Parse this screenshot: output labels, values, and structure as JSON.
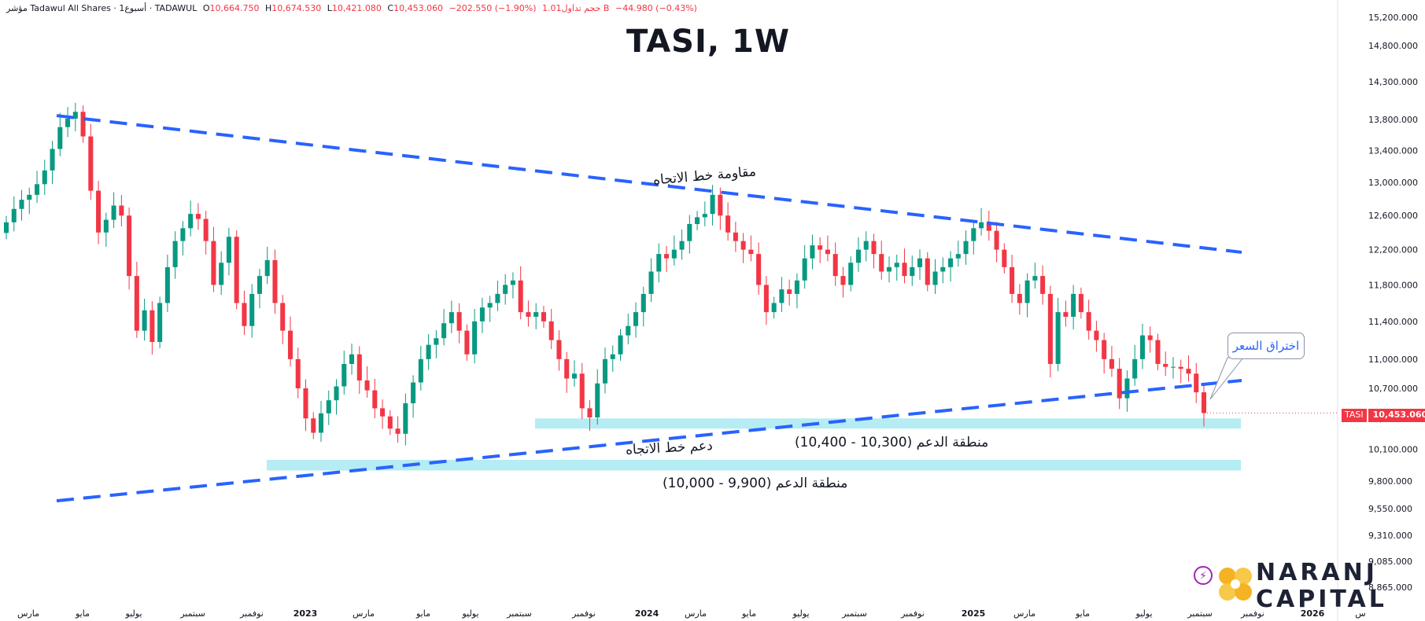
{
  "header": {
    "symbol_desc": "مؤشر Tadawul All Shares · 1أسبوع · TADAWUL",
    "open_label": "O",
    "open": "10,664.750",
    "high_label": "H",
    "high": "10,674.530",
    "low_label": "L",
    "low": "10,421.080",
    "close_label": "C",
    "close": "10,453.060",
    "change": "−202.550 (−1.90%)",
    "volume": "حجم تداول1.01 B",
    "vol_change": "−44.980 (−0.43%)"
  },
  "title": "TASI, 1W",
  "annotations": {
    "resistance": "مقاومة خط الاتجاه",
    "support_line": "دعم خط الاتجاه",
    "support_zone_upper": "منطقة الدعم (10,300 - 10,400)",
    "support_zone_lower": "منطقة الدعم (9,900 - 10,000)",
    "breakout": "اختراق السعر"
  },
  "price_tag": {
    "symbol": "TASI",
    "value": "10,453.060"
  },
  "logo": {
    "line1": "NARANJ",
    "line2": "CAPITAL"
  },
  "colors": {
    "up": "#089981",
    "down": "#f23645",
    "trend": "#2962ff",
    "zone": "#b2ebf2"
  },
  "chart_data": {
    "type": "candlestick",
    "title": "TASI, 1W",
    "y_axis_ticks": [
      15200,
      14800,
      14300,
      13800,
      13400,
      13000,
      12600,
      12200,
      11800,
      11400,
      11000,
      10700,
      10400,
      10100,
      9800,
      9550,
      9310,
      9085,
      8865
    ],
    "y_axis_labels": [
      "15,200.000",
      "14,800.000",
      "14,300.000",
      "13,800.000",
      "13,400.000",
      "13,000.000",
      "12,600.000",
      "12,200.000",
      "11,800.000",
      "11,400.000",
      "11,000.000",
      "10,700.000",
      "10,400.000",
      "10,100.000",
      "9,800.000",
      "9,550.000",
      "9,310.000",
      "9,085.000",
      "8,865.000"
    ],
    "y_scale": "log",
    "x_axis_labels": [
      "مارس",
      "مايو",
      "يوليو",
      "سبتمبر",
      "نوفمبر",
      "2023",
      "مارس",
      "مايو",
      "يوليو",
      "سبتمبر",
      "نوفمبر",
      "2024",
      "مارس",
      "مايو",
      "يوليو",
      "سبتمبر",
      "نوفمبر",
      "2025",
      "مارس",
      "مايو",
      "يوليو",
      "سبتمبر",
      "نوفمبر",
      "2026",
      "س"
    ],
    "x_label_bold": [
      false,
      false,
      false,
      false,
      false,
      true,
      false,
      false,
      false,
      false,
      false,
      true,
      false,
      false,
      false,
      false,
      false,
      true,
      false,
      false,
      false,
      false,
      false,
      true,
      false
    ],
    "weekly_closes": [
      12520,
      12680,
      12790,
      12850,
      12980,
      13150,
      13420,
      13700,
      13810,
      13900,
      13580,
      12900,
      12400,
      12550,
      12720,
      12600,
      11900,
      11300,
      11520,
      11180,
      11600,
      12000,
      12300,
      12450,
      12620,
      12560,
      12300,
      11800,
      12050,
      12350,
      11600,
      11350,
      11700,
      11900,
      12080,
      11600,
      11300,
      11000,
      10700,
      10400,
      10260,
      10450,
      10580,
      10720,
      10950,
      11050,
      10780,
      10680,
      10500,
      10420,
      10300,
      10250,
      10550,
      10760,
      11000,
      11150,
      11220,
      11380,
      11500,
      11300,
      11050,
      11400,
      11550,
      11600,
      11700,
      11800,
      11850,
      11500,
      11450,
      11500,
      11400,
      11200,
      11000,
      10800,
      10850,
      10500,
      10410,
      10750,
      11000,
      11050,
      11250,
      11350,
      11500,
      11700,
      11950,
      12150,
      12100,
      12200,
      12300,
      12500,
      12580,
      12620,
      12850,
      12600,
      12400,
      12300,
      12200,
      12150,
      11800,
      11500,
      11600,
      11750,
      11700,
      11850,
      12100,
      12250,
      12200,
      12150,
      11900,
      11800,
      12050,
      12200,
      12300,
      12150,
      11950,
      12000,
      12050,
      11900,
      12000,
      12100,
      11800,
      11950,
      12000,
      12100,
      12150,
      12300,
      12450,
      12520,
      12420,
      12200,
      12000,
      11700,
      11600,
      11850,
      11900,
      11700,
      10950,
      11500,
      11450,
      11700,
      11500,
      11300,
      11200,
      11000,
      10900,
      10600,
      10800,
      11000,
      11250,
      11200,
      10950,
      10920,
      10920,
      10900,
      10850,
      10660,
      10453
    ],
    "trendlines": [
      {
        "name": "resistance",
        "from": {
          "x": "2022-03-20",
          "y": 13850
        },
        "to": {
          "x": "2025-09-21",
          "y": 12170
        }
      },
      {
        "name": "support",
        "from": {
          "x": "2022-03-20",
          "y": 9620
        },
        "to": {
          "x": "2025-09-21",
          "y": 10780
        }
      }
    ],
    "zones": [
      {
        "name": "support_zone_upper",
        "y_low": 10300,
        "y_high": 10400
      },
      {
        "name": "support_zone_lower",
        "y_low": 9900,
        "y_high": 10000
      }
    ],
    "last_price": 10453.06
  }
}
